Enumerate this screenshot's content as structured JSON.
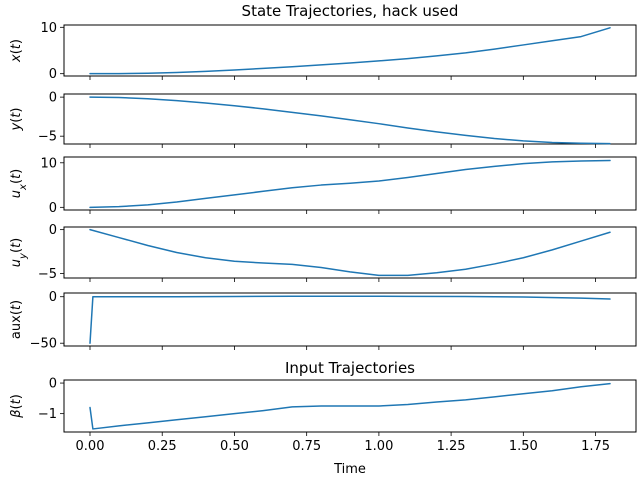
{
  "chart_data": [
    {
      "type": "line",
      "title": "State Trajectories,  hack used",
      "ylabel": "x(t)",
      "xlim": [
        -0.09,
        1.89
      ],
      "ylim": [
        -0.5,
        10.5
      ],
      "yticks": [
        0,
        10
      ],
      "x": [
        0.0,
        0.1,
        0.2,
        0.3,
        0.4,
        0.5,
        0.6,
        0.7,
        0.8,
        0.9,
        1.0,
        1.1,
        1.2,
        1.3,
        1.4,
        1.5,
        1.6,
        1.7,
        1.8
      ],
      "series": [
        {
          "values": [
            0.0,
            0.02,
            0.1,
            0.25,
            0.5,
            0.8,
            1.15,
            1.5,
            1.9,
            2.3,
            2.75,
            3.25,
            3.85,
            4.5,
            5.3,
            6.2,
            7.1,
            8.0,
            9.9
          ]
        }
      ]
    },
    {
      "type": "line",
      "title": "",
      "ylabel": "y(t)",
      "xlim": [
        -0.09,
        1.89
      ],
      "ylim": [
        -6.0,
        0.4
      ],
      "yticks": [
        0,
        -5
      ],
      "x": [
        0.0,
        0.1,
        0.2,
        0.3,
        0.4,
        0.5,
        0.6,
        0.7,
        0.8,
        0.9,
        1.0,
        1.1,
        1.2,
        1.3,
        1.4,
        1.5,
        1.6,
        1.7,
        1.8
      ],
      "series": [
        {
          "values": [
            0.0,
            -0.05,
            -0.2,
            -0.45,
            -0.75,
            -1.1,
            -1.5,
            -1.95,
            -2.4,
            -2.9,
            -3.4,
            -3.95,
            -4.45,
            -4.9,
            -5.3,
            -5.6,
            -5.8,
            -5.9,
            -5.95
          ]
        }
      ]
    },
    {
      "type": "line",
      "title": "",
      "ylabel": "u_x(t)",
      "xlim": [
        -0.09,
        1.89
      ],
      "ylim": [
        -0.6,
        11.3
      ],
      "yticks": [
        0,
        10
      ],
      "x": [
        0.0,
        0.1,
        0.2,
        0.3,
        0.4,
        0.5,
        0.6,
        0.7,
        0.8,
        0.9,
        1.0,
        1.1,
        1.2,
        1.3,
        1.4,
        1.5,
        1.6,
        1.7,
        1.8
      ],
      "series": [
        {
          "values": [
            0.0,
            0.15,
            0.55,
            1.2,
            2.0,
            2.8,
            3.6,
            4.4,
            5.0,
            5.4,
            5.9,
            6.7,
            7.6,
            8.5,
            9.2,
            9.8,
            10.2,
            10.4,
            10.5
          ]
        }
      ]
    },
    {
      "type": "line",
      "title": "",
      "ylabel": "u_y(t)",
      "xlim": [
        -0.09,
        1.89
      ],
      "ylim": [
        -5.5,
        0.3
      ],
      "yticks": [
        0,
        -5
      ],
      "x": [
        0.0,
        0.1,
        0.2,
        0.3,
        0.4,
        0.5,
        0.6,
        0.7,
        0.8,
        0.9,
        1.0,
        1.1,
        1.2,
        1.3,
        1.4,
        1.5,
        1.6,
        1.7,
        1.8
      ],
      "series": [
        {
          "values": [
            0.0,
            -0.9,
            -1.8,
            -2.6,
            -3.2,
            -3.6,
            -3.8,
            -3.95,
            -4.3,
            -4.8,
            -5.2,
            -5.2,
            -4.9,
            -4.5,
            -3.9,
            -3.2,
            -2.3,
            -1.3,
            -0.3
          ]
        }
      ]
    },
    {
      "type": "line",
      "title": "",
      "ylabel": "aux(t)",
      "xlim": [
        -0.09,
        1.89
      ],
      "ylim": [
        -53.0,
        4.0
      ],
      "yticks": [
        0,
        -50
      ],
      "x": [
        0.0,
        0.01,
        0.1,
        0.3,
        0.5,
        0.7,
        0.9,
        1.1,
        1.3,
        1.5,
        1.7,
        1.8
      ],
      "series": [
        {
          "values": [
            -50.0,
            0.0,
            0.0,
            0.0,
            0.3,
            0.5,
            0.5,
            0.4,
            0.2,
            -0.3,
            -1.5,
            -2.5
          ]
        }
      ]
    },
    {
      "type": "line",
      "title": "Input Trajectories",
      "ylabel": "β(t)",
      "xlabel": "Time",
      "xlim": [
        -0.09,
        1.89
      ],
      "ylim": [
        -1.6,
        0.1
      ],
      "yticks": [
        0,
        -1
      ],
      "xticks": [
        0.0,
        0.25,
        0.5,
        0.75,
        1.0,
        1.25,
        1.5,
        1.75
      ],
      "xticklabels": [
        "0.00",
        "0.25",
        "0.50",
        "0.75",
        "1.00",
        "1.25",
        "1.50",
        "1.75"
      ],
      "x": [
        0.0,
        0.01,
        0.1,
        0.2,
        0.3,
        0.4,
        0.5,
        0.6,
        0.7,
        0.8,
        0.9,
        1.0,
        1.1,
        1.2,
        1.3,
        1.4,
        1.5,
        1.6,
        1.7,
        1.8
      ],
      "series": [
        {
          "values": [
            -0.8,
            -1.5,
            -1.4,
            -1.3,
            -1.2,
            -1.1,
            -1.0,
            -0.9,
            -0.78,
            -0.75,
            -0.75,
            -0.75,
            -0.7,
            -0.62,
            -0.55,
            -0.45,
            -0.35,
            -0.25,
            -0.12,
            -0.02
          ]
        }
      ]
    }
  ]
}
